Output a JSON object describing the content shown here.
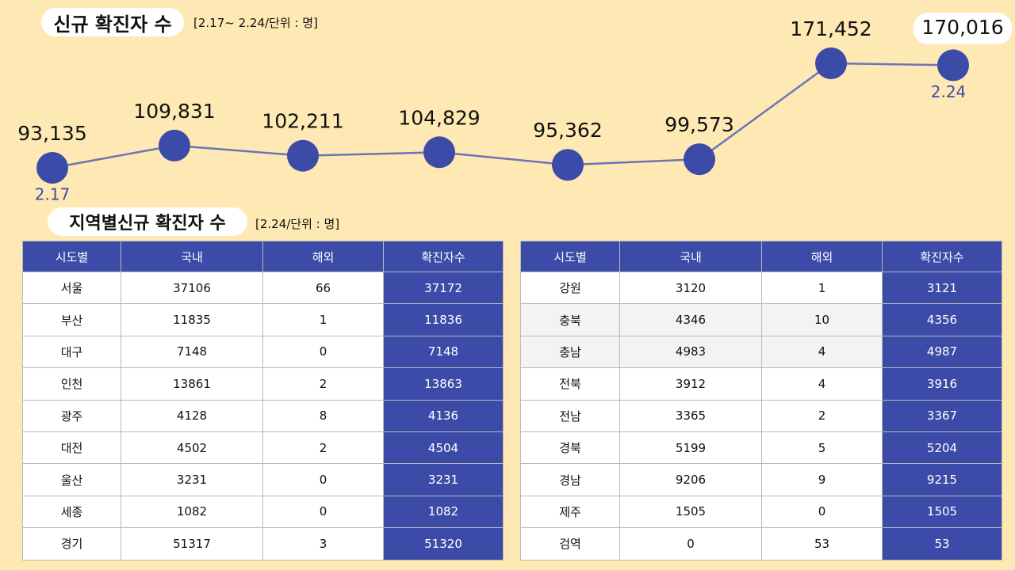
{
  "chart_data": {
    "type": "line",
    "title": "신규 확진자 수",
    "subtitle": "[2.17~ 2.24/단위 : 명]",
    "categories": [
      "2.17",
      null,
      null,
      null,
      null,
      null,
      null,
      "2.24"
    ],
    "values": [
      93135,
      109831,
      102211,
      104829,
      95362,
      99573,
      171452,
      170016
    ],
    "value_labels": [
      "93,135",
      "109,831",
      "102,211",
      "104,829",
      "95,362",
      "99,573",
      "171,452",
      "170,016"
    ],
    "color": "#3d4ba8",
    "line_color": "#6b75b5"
  },
  "regional": {
    "title": "지역별신규 확진자 수",
    "subtitle": "[2.24/단위 : 명]",
    "tables": [
      {
        "header": [
          "시도별",
          "국내",
          "해외",
          "확진자수"
        ],
        "rows": [
          [
            "서울",
            37106,
            66,
            37172
          ],
          [
            "부산",
            11835,
            1,
            11836
          ],
          [
            "대구",
            7148,
            0,
            7148
          ],
          [
            "인천",
            13861,
            2,
            13863
          ],
          [
            "광주",
            4128,
            8,
            4136
          ],
          [
            "대전",
            4502,
            2,
            4504
          ],
          [
            "울산",
            3231,
            0,
            3231
          ],
          [
            "세종",
            1082,
            0,
            1082
          ],
          [
            "경기",
            51317,
            3,
            51320
          ]
        ]
      },
      {
        "header": [
          "시도별",
          "국내",
          "해외",
          "확진자수"
        ],
        "rows": [
          [
            "강원",
            3120,
            1,
            3121
          ],
          [
            "충북",
            4346,
            10,
            4356
          ],
          [
            "충남",
            4983,
            4,
            4987
          ],
          [
            "전북",
            3912,
            4,
            3916
          ],
          [
            "전남",
            3365,
            2,
            3367
          ],
          [
            "경북",
            5199,
            5,
            5204
          ],
          [
            "경남",
            9206,
            9,
            9215
          ],
          [
            "제주",
            1505,
            0,
            1505
          ],
          [
            "검역",
            0,
            53,
            53
          ]
        ]
      }
    ]
  }
}
